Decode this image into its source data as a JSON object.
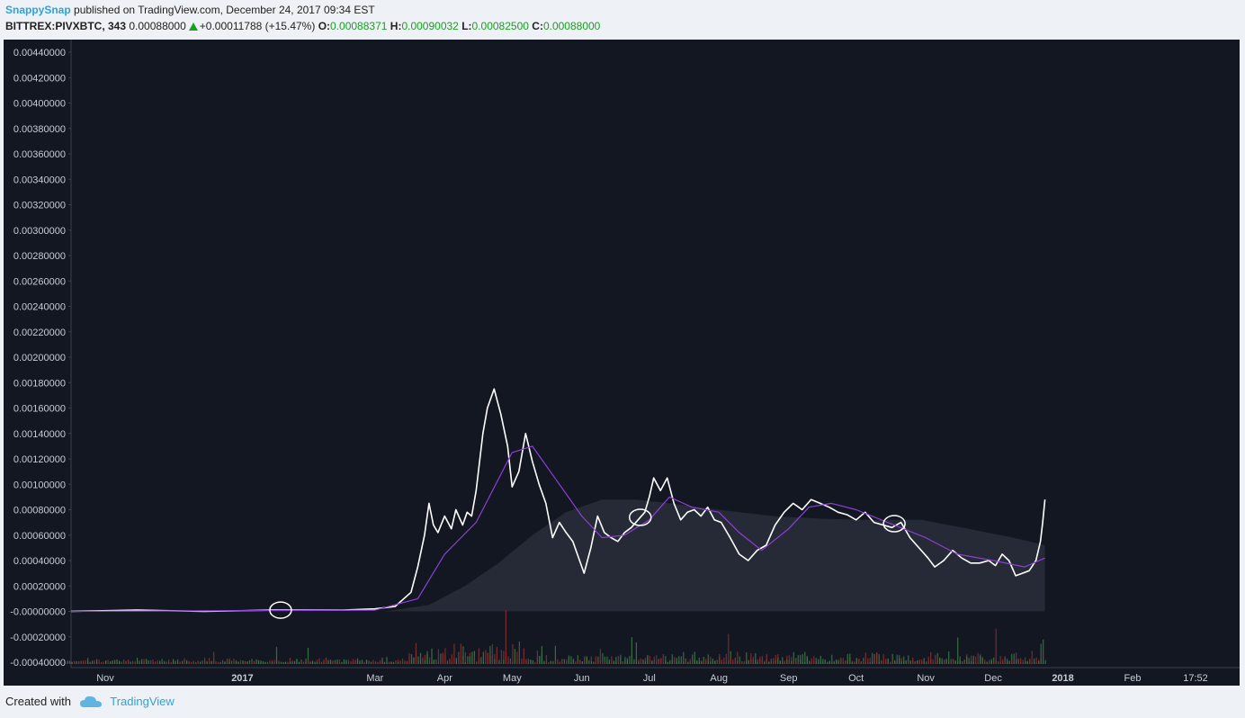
{
  "header": {
    "author": "SnappySnap",
    "published_text": "published on TradingView.com, December 24, 2017 09:34 EST"
  },
  "ticker": {
    "symbol": "BITTREX:PIVXBTC, 343",
    "last": "0.00088000",
    "change": "+0.00011788 (+15.47%)",
    "o_label": "O:",
    "o": "0.00088371",
    "h_label": "H:",
    "h": "0.00090032",
    "l_label": "L:",
    "l": "0.00082500",
    "c_label": "C:",
    "c": "0.00088000"
  },
  "chart_data": {
    "type": "line",
    "title": "",
    "xlabel": "",
    "ylabel": "",
    "ylim": [
      -0.0004,
      0.0044
    ],
    "y_ticks": [
      "0.00440000",
      "0.00420000",
      "0.00400000",
      "0.00380000",
      "0.00360000",
      "0.00340000",
      "0.00320000",
      "0.00300000",
      "0.00280000",
      "0.00260000",
      "0.00240000",
      "0.00220000",
      "0.00200000",
      "0.00180000",
      "0.00160000",
      "0.00140000",
      "0.00120000",
      "0.00100000",
      "0.00080000",
      "0.00060000",
      "0.00040000",
      "0.00020000",
      "-0.00000000",
      "-0.00020000",
      "-0.00040000"
    ],
    "y_tick_values": [
      0.0044,
      0.0042,
      0.004,
      0.0038,
      0.0036,
      0.0034,
      0.0032,
      0.003,
      0.0028,
      0.0026,
      0.0024,
      0.0022,
      0.002,
      0.0018,
      0.0016,
      0.0014,
      0.0012,
      0.001,
      0.0008,
      0.0006,
      0.0004,
      0.0002,
      0.0,
      -0.0002,
      -0.0004
    ],
    "x_ticks": [
      {
        "label": "Nov",
        "date": "2016-11-01",
        "bold": false
      },
      {
        "label": "2017",
        "date": "2017-01-01",
        "bold": true
      },
      {
        "label": "Mar",
        "date": "2017-03-01",
        "bold": false
      },
      {
        "label": "Apr",
        "date": "2017-04-01",
        "bold": false
      },
      {
        "label": "May",
        "date": "2017-05-01",
        "bold": false
      },
      {
        "label": "Jun",
        "date": "2017-06-01",
        "bold": false
      },
      {
        "label": "Jul",
        "date": "2017-07-01",
        "bold": false
      },
      {
        "label": "Aug",
        "date": "2017-08-01",
        "bold": false
      },
      {
        "label": "Sep",
        "date": "2017-09-01",
        "bold": false
      },
      {
        "label": "Oct",
        "date": "2017-10-01",
        "bold": false
      },
      {
        "label": "Nov",
        "date": "2017-11-01",
        "bold": false
      },
      {
        "label": "Dec",
        "date": "2017-12-01",
        "bold": false
      },
      {
        "label": "2018",
        "date": "2018-01-01",
        "bold": true
      },
      {
        "label": "Feb",
        "date": "2018-02-01",
        "bold": false
      },
      {
        "label": "17:52",
        "date": "2018-03-01",
        "bold": false
      }
    ],
    "series": [
      {
        "name": "",
        "color": "#ffffff",
        "points": [
          [
            "2016-10-15",
            0.0
          ],
          [
            "2016-11-15",
            1e-05
          ],
          [
            "2016-12-15",
            0.0
          ],
          [
            "2017-01-15",
            1e-05
          ],
          [
            "2017-02-15",
            1e-05
          ],
          [
            "2017-03-01",
            2e-05
          ],
          [
            "2017-03-10",
            4e-05
          ],
          [
            "2017-03-17",
            0.00015
          ],
          [
            "2017-03-20",
            0.00035
          ],
          [
            "2017-03-23",
            0.0006
          ],
          [
            "2017-03-25",
            0.00085
          ],
          [
            "2017-03-27",
            0.00068
          ],
          [
            "2017-03-29",
            0.00062
          ],
          [
            "2017-04-01",
            0.00075
          ],
          [
            "2017-04-04",
            0.00065
          ],
          [
            "2017-04-06",
            0.0008
          ],
          [
            "2017-04-09",
            0.00068
          ],
          [
            "2017-04-11",
            0.00078
          ],
          [
            "2017-04-13",
            0.00075
          ],
          [
            "2017-04-15",
            0.00095
          ],
          [
            "2017-04-18",
            0.0014
          ],
          [
            "2017-04-20",
            0.0016
          ],
          [
            "2017-04-23",
            0.00175
          ],
          [
            "2017-04-26",
            0.00155
          ],
          [
            "2017-04-29",
            0.0013
          ],
          [
            "2017-05-01",
            0.00098
          ],
          [
            "2017-05-04",
            0.0011
          ],
          [
            "2017-05-07",
            0.0014
          ],
          [
            "2017-05-10",
            0.00118
          ],
          [
            "2017-05-13",
            0.001
          ],
          [
            "2017-05-16",
            0.00085
          ],
          [
            "2017-05-19",
            0.00058
          ],
          [
            "2017-05-22",
            0.0007
          ],
          [
            "2017-05-25",
            0.00062
          ],
          [
            "2017-05-28",
            0.00055
          ],
          [
            "2017-05-31",
            0.0004
          ],
          [
            "2017-06-02",
            0.0003
          ],
          [
            "2017-06-05",
            0.0005
          ],
          [
            "2017-06-08",
            0.00075
          ],
          [
            "2017-06-11",
            0.00062
          ],
          [
            "2017-06-14",
            0.00058
          ],
          [
            "2017-06-17",
            0.00055
          ],
          [
            "2017-06-20",
            0.00062
          ],
          [
            "2017-06-23",
            0.00066
          ],
          [
            "2017-06-26",
            0.00072
          ],
          [
            "2017-06-29",
            0.00078
          ],
          [
            "2017-07-01",
            0.0009
          ],
          [
            "2017-07-03",
            0.00105
          ],
          [
            "2017-07-06",
            0.00095
          ],
          [
            "2017-07-09",
            0.00105
          ],
          [
            "2017-07-12",
            0.00085
          ],
          [
            "2017-07-15",
            0.00072
          ],
          [
            "2017-07-18",
            0.00078
          ],
          [
            "2017-07-21",
            0.0008
          ],
          [
            "2017-07-24",
            0.00075
          ],
          [
            "2017-07-27",
            0.00082
          ],
          [
            "2017-07-30",
            0.00072
          ],
          [
            "2017-08-02",
            0.0007
          ],
          [
            "2017-08-06",
            0.00058
          ],
          [
            "2017-08-10",
            0.00045
          ],
          [
            "2017-08-14",
            0.0004
          ],
          [
            "2017-08-18",
            0.00048
          ],
          [
            "2017-08-22",
            0.00052
          ],
          [
            "2017-08-26",
            0.00068
          ],
          [
            "2017-08-30",
            0.00078
          ],
          [
            "2017-09-03",
            0.00085
          ],
          [
            "2017-09-07",
            0.0008
          ],
          [
            "2017-09-11",
            0.00088
          ],
          [
            "2017-09-15",
            0.00085
          ],
          [
            "2017-09-19",
            0.00082
          ],
          [
            "2017-09-23",
            0.00078
          ],
          [
            "2017-09-27",
            0.00076
          ],
          [
            "2017-10-01",
            0.00072
          ],
          [
            "2017-10-05",
            0.00078
          ],
          [
            "2017-10-09",
            0.0007
          ],
          [
            "2017-10-13",
            0.00068
          ],
          [
            "2017-10-17",
            0.00066
          ],
          [
            "2017-10-21",
            0.0007
          ],
          [
            "2017-10-25",
            0.00058
          ],
          [
            "2017-10-29",
            0.0005
          ],
          [
            "2017-11-02",
            0.00042
          ],
          [
            "2017-11-05",
            0.00035
          ],
          [
            "2017-11-09",
            0.0004
          ],
          [
            "2017-11-13",
            0.00048
          ],
          [
            "2017-11-17",
            0.00042
          ],
          [
            "2017-11-21",
            0.00038
          ],
          [
            "2017-11-25",
            0.00038
          ],
          [
            "2017-11-29",
            0.0004
          ],
          [
            "2017-12-02",
            0.00036
          ],
          [
            "2017-12-05",
            0.00045
          ],
          [
            "2017-12-08",
            0.0004
          ],
          [
            "2017-12-11",
            0.00028
          ],
          [
            "2017-12-14",
            0.0003
          ],
          [
            "2017-12-17",
            0.00032
          ],
          [
            "2017-12-20",
            0.0004
          ],
          [
            "2017-12-22",
            0.00055
          ],
          [
            "2017-12-23",
            0.0007
          ],
          [
            "2017-12-24",
            0.00088
          ]
        ]
      },
      {
        "name": "",
        "color": "#8c3fd6",
        "points": [
          [
            "2016-10-15",
            0.0
          ],
          [
            "2017-03-01",
            1e-05
          ],
          [
            "2017-03-20",
            0.0001
          ],
          [
            "2017-04-01",
            0.00045
          ],
          [
            "2017-04-15",
            0.0007
          ],
          [
            "2017-05-01",
            0.00125
          ],
          [
            "2017-05-10",
            0.0013
          ],
          [
            "2017-05-20",
            0.00105
          ],
          [
            "2017-06-01",
            0.00075
          ],
          [
            "2017-06-10",
            0.00058
          ],
          [
            "2017-06-20",
            0.0006
          ],
          [
            "2017-07-01",
            0.00072
          ],
          [
            "2017-07-10",
            0.0009
          ],
          [
            "2017-07-20",
            0.00082
          ],
          [
            "2017-08-01",
            0.00078
          ],
          [
            "2017-08-10",
            0.00062
          ],
          [
            "2017-08-20",
            0.00048
          ],
          [
            "2017-09-01",
            0.00065
          ],
          [
            "2017-09-10",
            0.00082
          ],
          [
            "2017-09-20",
            0.00085
          ],
          [
            "2017-10-01",
            0.0008
          ],
          [
            "2017-10-15",
            0.0007
          ],
          [
            "2017-11-01",
            0.00058
          ],
          [
            "2017-11-15",
            0.00045
          ],
          [
            "2017-12-01",
            0.0004
          ],
          [
            "2017-12-15",
            0.00035
          ],
          [
            "2017-12-24",
            0.00042
          ]
        ]
      },
      {
        "name": "",
        "color": "#2a2e39",
        "area": true,
        "points": [
          [
            "2017-03-05",
            0.0
          ],
          [
            "2017-03-25",
            5e-05
          ],
          [
            "2017-04-10",
            0.0002
          ],
          [
            "2017-04-25",
            0.00038
          ],
          [
            "2017-05-10",
            0.0006
          ],
          [
            "2017-05-25",
            0.00078
          ],
          [
            "2017-06-10",
            0.00088
          ],
          [
            "2017-06-25",
            0.00088
          ],
          [
            "2017-07-10",
            0.00085
          ],
          [
            "2017-08-01",
            0.0008
          ],
          [
            "2017-08-25",
            0.00075
          ],
          [
            "2017-09-15",
            0.00073
          ],
          [
            "2017-10-05",
            0.00072
          ],
          [
            "2017-10-30",
            0.00072
          ],
          [
            "2017-11-20",
            0.00065
          ],
          [
            "2017-12-10",
            0.00058
          ],
          [
            "2017-12-24",
            0.00052
          ]
        ]
      }
    ],
    "annotations": [
      {
        "type": "ellipse",
        "date": "2017-01-18",
        "value": 1e-05
      },
      {
        "type": "ellipse",
        "date": "2017-06-27",
        "value": 0.00074
      },
      {
        "type": "ellipse",
        "date": "2017-10-18",
        "value": 0.00069
      }
    ],
    "grid": false,
    "legend": "none"
  },
  "footer": {
    "created_with": "Created with",
    "brand": "TradingView"
  }
}
